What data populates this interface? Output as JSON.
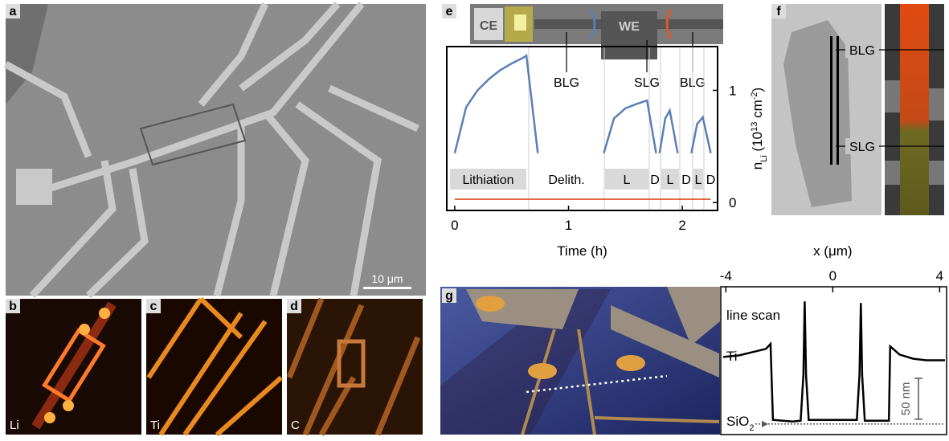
{
  "panels": {
    "a": {
      "letter": "a",
      "scale_bar": "10 μm"
    },
    "b": {
      "letter": "b",
      "element": "Li"
    },
    "c": {
      "letter": "c",
      "element": "Ti"
    },
    "d": {
      "letter": "d",
      "element": "C"
    },
    "e": {
      "letter": "e",
      "ce": "CE",
      "we": "WE",
      "labels": [
        "BLG",
        "SLG",
        "BLG"
      ]
    },
    "f": {
      "letter": "f",
      "labels": [
        "BLG",
        "SLG"
      ]
    },
    "g": {
      "letter": "g"
    }
  },
  "chart_data": [
    {
      "type": "line",
      "x_label": "Time (h)",
      "y_label": [
        "n",
        "Li",
        " (10",
        "13",
        " cm",
        "-2",
        ")"
      ],
      "xlim": [
        -0.07,
        2.31
      ],
      "ylim": [
        -0.07,
        1.39
      ],
      "xticks": [
        0,
        1,
        2
      ],
      "yticks": [
        0,
        1
      ],
      "phases": [
        "Lithiation",
        "Delith.",
        "L",
        "D",
        "L",
        "D",
        "L",
        "D"
      ],
      "x": [
        0,
        0.1,
        0.2,
        0.3,
        0.4,
        0.5,
        0.6,
        0.63,
        0.73,
        1.0,
        1.31,
        1.4,
        1.5,
        1.6,
        1.69,
        1.77,
        1.785,
        1.8,
        1.85,
        1.89,
        1.96,
        2.02,
        2.08,
        2.13,
        2.18,
        2.25
      ],
      "series": [
        {
          "color": "#5b7fb5",
          "values": [
            0.44,
            0.85,
            1.0,
            1.1,
            1.18,
            1.24,
            1.29,
            1.31,
            0.44,
            null,
            0.44,
            0.75,
            0.84,
            0.88,
            0.91,
            0.44,
            null,
            0.44,
            0.75,
            0.82,
            0.44,
            null,
            0.44,
            0.7,
            0.76,
            0.44
          ]
        },
        {
          "color": "#e0552a",
          "values": [
            0.03,
            0.03,
            0.03,
            0.03,
            0.03,
            0.03,
            0.03,
            0.03,
            0.03,
            0.03,
            0.03,
            0.03,
            0.03,
            0.03,
            0.03,
            0.03,
            0.03,
            0.03,
            0.03,
            0.03,
            0.03,
            0.03,
            0.03,
            0.03,
            0.03,
            0.03
          ]
        }
      ]
    },
    {
      "type": "line",
      "title": "line scan",
      "x_label": "x (μm)",
      "xlim": [
        -4.1,
        4.2
      ],
      "ylim": [
        -10,
        165
      ],
      "xticks": [
        -4,
        0,
        4
      ],
      "annotations": {
        "ti": "Ti",
        "sio2": [
          "SiO",
          "2"
        ]
      },
      "scale_bar": {
        "value": 50,
        "label": "50 nm"
      },
      "x": [
        -4.1,
        -3.5,
        -3.0,
        -2.5,
        -2.33,
        -2.24,
        -1.5,
        -1.2,
        -1.1,
        -1.05,
        -1.0,
        -0.9,
        0.9,
        1.0,
        1.05,
        1.1,
        1.2,
        2.1,
        2.15,
        2.5,
        3.0,
        3.5,
        4.2
      ],
      "series": [
        {
          "color": "#000000",
          "values": [
            82,
            84,
            88,
            92,
            98,
            5,
            3,
            4,
            60,
            150,
            60,
            5,
            5,
            60,
            148,
            60,
            4,
            4,
            95,
            85,
            80,
            78,
            78
          ]
        }
      ]
    }
  ]
}
